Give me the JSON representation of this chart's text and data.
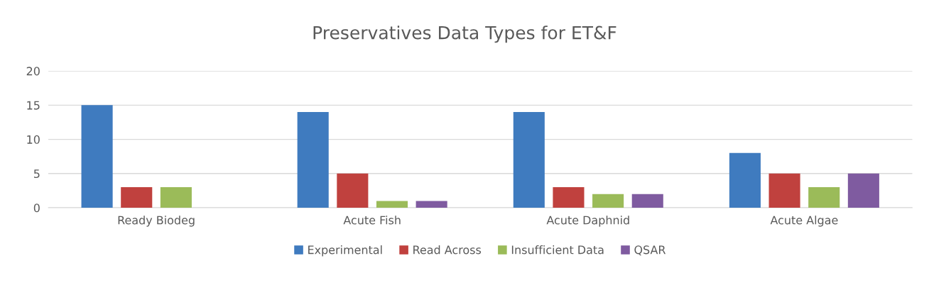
{
  "chart_data": {
    "type": "bar",
    "title": "Preservatives Data Types for ET&F",
    "categories": [
      "Ready Biodeg",
      "Acute Fish",
      "Acute Daphnid",
      "Acute Algae"
    ],
    "series": [
      {
        "name": "Experimental",
        "color": "#3f7bbf",
        "values": [
          15,
          14,
          14,
          8
        ]
      },
      {
        "name": "Read Across",
        "color": "#c0413e",
        "values": [
          3,
          5,
          3,
          5
        ]
      },
      {
        "name": "Insufficient Data",
        "color": "#9bbb59",
        "values": [
          3,
          1,
          2,
          3
        ]
      },
      {
        "name": "QSAR",
        "color": "#7f5ba0",
        "values": [
          0,
          1,
          2,
          5
        ]
      }
    ],
    "ylim": [
      0,
      20
    ],
    "yticks": [
      0,
      5,
      10,
      15,
      20
    ],
    "grid": "y",
    "legend": "bottom"
  }
}
